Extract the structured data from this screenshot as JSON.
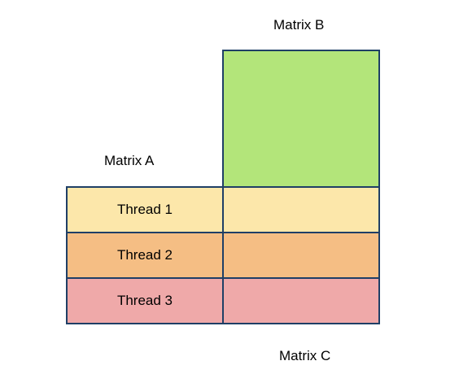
{
  "labels": {
    "matrix_a": "Matrix A",
    "matrix_b": "Matrix B",
    "matrix_c": "Matrix C"
  },
  "threads": [
    {
      "label": "Thread 1",
      "color": "#fce7aa"
    },
    {
      "label": "Thread 2",
      "color": "#f5be84"
    },
    {
      "label": "Thread 3",
      "color": "#efa9a9"
    }
  ],
  "colors": {
    "matrix_b": "#b3e57a",
    "border": "#1f3f66"
  }
}
